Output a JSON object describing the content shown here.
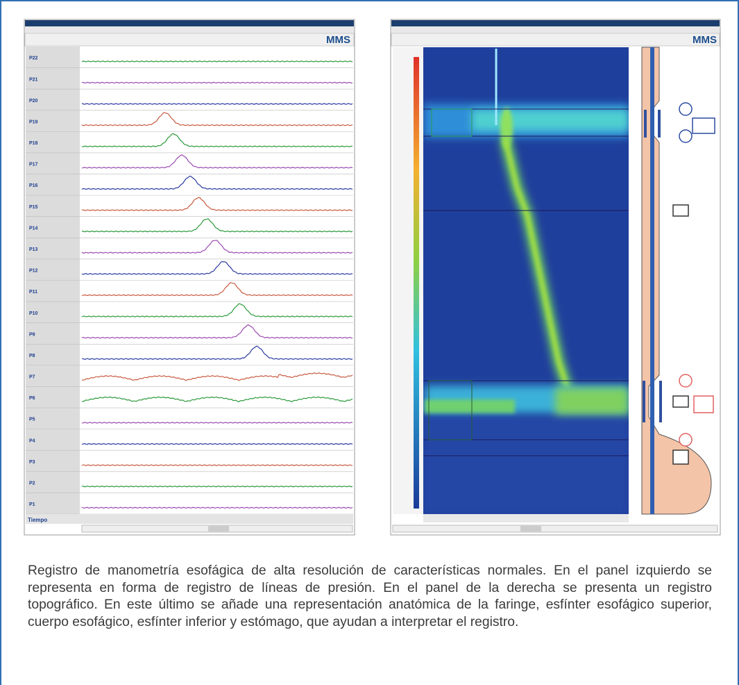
{
  "left_panel": {
    "logo": "MMS",
    "footer_label": "Tiempo",
    "channels": [
      "P22",
      "P21",
      "P20",
      "P19",
      "P18",
      "P17",
      "P16",
      "P15",
      "P14",
      "P13",
      "P12",
      "P11",
      "P10",
      "P9",
      "P8",
      "P7",
      "P6",
      "P5",
      "P4",
      "P3",
      "P2",
      "P1"
    ]
  },
  "right_panel": {
    "logo": "MMS"
  },
  "caption": "Registro de manometría esofágica de alta resolución de características normales. En el panel izquierdo se representa en forma de registro de líneas de presión. En el panel de la derecha se presenta un registro topográfico. En este último se añade una representación anatómica de la faringe, esfínter esofágico superior, cuerpo esofágico, esfínter inferior y estómago, que ayudan a interpretar el registro."
}
